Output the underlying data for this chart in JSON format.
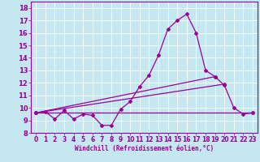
{
  "title": "",
  "xlabel": "Windchill (Refroidissement éolien,°C)",
  "bg_color": "#c5e8f0",
  "line_color": "#990099",
  "grid_color": "#ffffff",
  "xlim": [
    -0.5,
    23.5
  ],
  "ylim": [
    8,
    18.5
  ],
  "xticks": [
    0,
    1,
    2,
    3,
    4,
    5,
    6,
    7,
    8,
    9,
    10,
    11,
    12,
    13,
    14,
    15,
    16,
    17,
    18,
    19,
    20,
    21,
    22,
    23
  ],
  "yticks": [
    8,
    9,
    10,
    11,
    12,
    13,
    14,
    15,
    16,
    17,
    18
  ],
  "line1_x": [
    0,
    1,
    2,
    3,
    4,
    5,
    6,
    7,
    8,
    9,
    10,
    11,
    12,
    13,
    14,
    15,
    16,
    17,
    18,
    19,
    20,
    21,
    22,
    23
  ],
  "line1_y": [
    9.6,
    9.7,
    9.1,
    9.8,
    9.1,
    9.5,
    9.4,
    8.6,
    8.6,
    9.9,
    10.5,
    11.7,
    12.6,
    14.2,
    16.3,
    17.0,
    17.5,
    16.0,
    13.0,
    12.5,
    11.8,
    10.0,
    9.5,
    9.6
  ],
  "line2_x": [
    0,
    23
  ],
  "line2_y": [
    9.6,
    9.6
  ],
  "line3_x": [
    0,
    19
  ],
  "line3_y": [
    9.6,
    12.5
  ],
  "line4_x": [
    0,
    20
  ],
  "line4_y": [
    9.6,
    11.9
  ],
  "figsize": [
    3.2,
    2.0
  ],
  "dpi": 100
}
